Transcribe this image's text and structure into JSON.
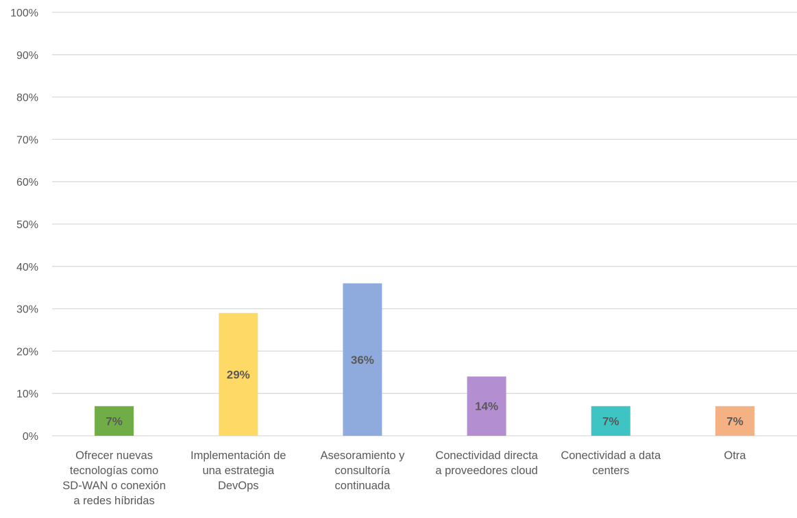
{
  "chart_data": {
    "type": "bar",
    "title": "",
    "xlabel": "",
    "ylabel": "",
    "ylim": [
      0,
      100
    ],
    "y_tick_labels": [
      "0%",
      "10%",
      "20%",
      "30%",
      "40%",
      "50%",
      "60%",
      "70%",
      "80%",
      "90%",
      "100%"
    ],
    "y_ticks": [
      0,
      10,
      20,
      30,
      40,
      50,
      60,
      70,
      80,
      90,
      100
    ],
    "grid": true,
    "legend": "none",
    "categories": [
      "Ofrecer nuevas tecnologías como SD-WAN o conexión a redes híbridas",
      "Implementación de una estrategia DevOps",
      "Asesoramiento y consultoría continuada",
      "Conectividad directa a proveedores cloud",
      "Conectividad a data centers",
      "Otra"
    ],
    "category_lines": [
      [
        "Ofrecer nuevas",
        "tecnologías como",
        "SD-WAN o conexión",
        "a redes híbridas"
      ],
      [
        "Implementación de",
        "una estrategia",
        "DevOps"
      ],
      [
        "Asesoramiento y",
        "consultoría",
        "continuada"
      ],
      [
        "Conectividad directa",
        "a proveedores cloud"
      ],
      [
        "Conectividad a data",
        "centers"
      ],
      [
        "Otra"
      ]
    ],
    "values": [
      7,
      29,
      36,
      14,
      7,
      7
    ],
    "data_labels": [
      "7%",
      "29%",
      "36%",
      "14%",
      "7%",
      "7%"
    ],
    "colors": [
      "#70ad47",
      "#ffd966",
      "#8faadc",
      "#b38fd1",
      "#3fc4c4",
      "#f4b183"
    ]
  }
}
